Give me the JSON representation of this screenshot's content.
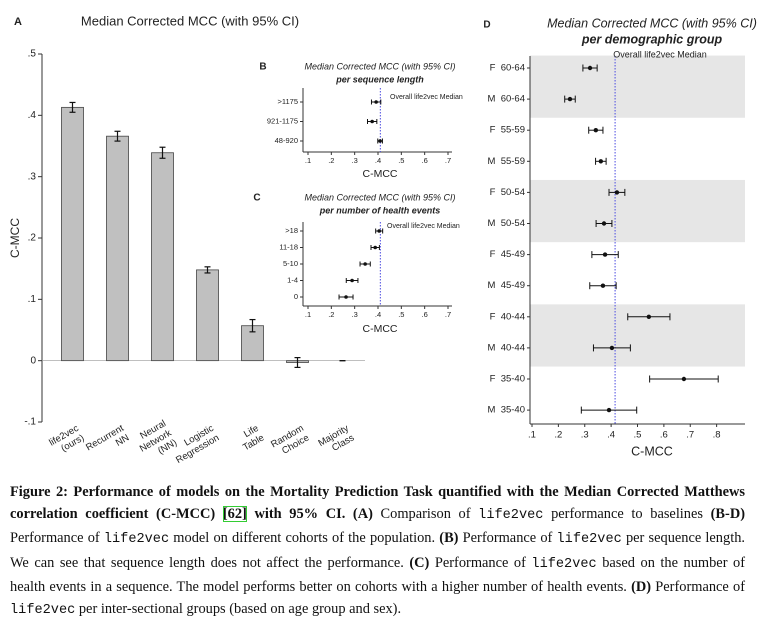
{
  "chart_data": [
    {
      "type": "bar",
      "panel": "A",
      "title": "Median Corrected MCC (with 95% CI)",
      "ylabel": "C-MCC",
      "categories": [
        [
          "life2vec",
          "(ours)"
        ],
        [
          "Recurrent",
          "NN"
        ],
        [
          "Neural",
          "Network",
          "(NN)"
        ],
        [
          "Logistic",
          "Regression"
        ],
        [
          "Life",
          "Table"
        ],
        [
          "Random",
          "Choice"
        ],
        [
          "Majority",
          "Class"
        ]
      ],
      "values": [
        0.413,
        0.366,
        0.339,
        0.148,
        0.057,
        -0.003,
        0
      ],
      "errors": [
        0.008,
        0.008,
        0.009,
        0.005,
        0.01,
        0.008,
        0
      ],
      "color": "#c0c0c0",
      "ylim": [
        -0.1,
        0.5
      ],
      "yticks": [
        {
          "value": -0.1,
          "label": "-.1"
        },
        0,
        {
          "value": 0.1,
          "label": ".1"
        },
        {
          "value": 0.2,
          "label": ".2"
        },
        {
          "value": 0.3,
          "label": ".3"
        },
        {
          "value": 0.4,
          "label": ".4"
        },
        {
          "value": 0.5,
          "label": ".5"
        }
      ]
    },
    {
      "type": "dot",
      "panel": "B",
      "title": "Median Corrected MCC (with 95% CI)",
      "subtitle": "per sequence length",
      "xlabel": "C-MCC",
      "categories": [
        ">1175",
        "921-1175",
        "48-920"
      ],
      "values": [
        0.392,
        0.375,
        0.409
      ],
      "errors": [
        0.02,
        0.02,
        0.01
      ],
      "color": "#111111",
      "ref_color": "#4a4ae0",
      "ref_line": {
        "value": 0.41,
        "label": "Overall life2vec Median"
      },
      "xlim": [
        0.1,
        0.7
      ],
      "xticks": [
        {
          "value": 0.1,
          "label": ".1"
        },
        {
          "value": 0.2,
          "label": ".2"
        },
        {
          "value": 0.3,
          "label": ".3"
        },
        {
          "value": 0.4,
          "label": ".4"
        },
        {
          "value": 0.5,
          "label": ".5"
        },
        {
          "value": 0.6,
          "label": ".6"
        },
        {
          "value": 0.7,
          "label": ".7"
        }
      ]
    },
    {
      "type": "dot",
      "panel": "C",
      "title": "Median Corrected MCC (with 95% CI)",
      "subtitle": "per number of health events",
      "xlabel": "C-MCC",
      "categories": [
        ">18",
        "11-18",
        "5-10",
        "1-4",
        "0"
      ],
      "values": [
        0.405,
        0.388,
        0.345,
        0.289,
        0.263
      ],
      "errors": [
        0.015,
        0.018,
        0.022,
        0.025,
        0.03
      ],
      "color": "#111111",
      "ref_color": "#4a4ae0",
      "ref_line": {
        "value": 0.41,
        "label": "Overall life2vec Median"
      },
      "xlim": [
        0.1,
        0.7
      ],
      "xticks": [
        {
          "value": 0.1,
          "label": ".1"
        },
        {
          "value": 0.2,
          "label": ".2"
        },
        {
          "value": 0.3,
          "label": ".3"
        },
        {
          "value": 0.4,
          "label": ".4"
        },
        {
          "value": 0.5,
          "label": ".5"
        },
        {
          "value": 0.6,
          "label": ".6"
        },
        {
          "value": 0.7,
          "label": ".7"
        }
      ]
    },
    {
      "type": "dot",
      "panel": "D",
      "title": "Median Corrected MCC (with 95% CI)",
      "subtitle": "per demographic group",
      "xlabel": "C-MCC",
      "categories": [
        "F  60-64",
        "M  60-64",
        "F  55-59",
        "M  55-59",
        "F  50-54",
        "M  50-54",
        "F  45-49",
        "M  45-49",
        "F  40-44",
        "M  40-44",
        "F  35-40",
        "M  35-40"
      ],
      "values": [
        0.32,
        0.244,
        0.342,
        0.361,
        0.422,
        0.373,
        0.377,
        0.369,
        0.543,
        0.403,
        0.676,
        0.392
      ],
      "errors": [
        0.027,
        0.02,
        0.027,
        0.02,
        0.03,
        0.03,
        0.05,
        0.05,
        0.08,
        0.07,
        0.13,
        0.105
      ],
      "color": "#111111",
      "ref_color": "#4a4ae0",
      "row_shading": "#e6e6e6",
      "ref_line": {
        "value": 0.415,
        "label": "Overall life2vec Median"
      },
      "xlim": [
        0.1,
        0.9
      ],
      "xticks": [
        {
          "value": 0.1,
          "label": ".1"
        },
        {
          "value": 0.2,
          "label": ".2"
        },
        {
          "value": 0.3,
          "label": ".3"
        },
        {
          "value": 0.4,
          "label": ".4"
        },
        {
          "value": 0.5,
          "label": ".5"
        },
        {
          "value": 0.6,
          "label": ".6"
        },
        {
          "value": 0.7,
          "label": ".7"
        },
        {
          "value": 0.8,
          "label": ".8"
        }
      ]
    }
  ],
  "caption": {
    "runs": [
      {
        "text": "Figure 2: Performance of models on the Mortality Prediction Task quantified with the Median Corrected Matthews correlation coefficient (C-MCC) ",
        "font": "bold"
      },
      {
        "text": "[62]",
        "font": "link"
      },
      {
        "text": " with 95% CI.",
        "font": "bold"
      },
      {
        "text": " (A)",
        "font": "bold"
      },
      {
        "text": " Comparison of ",
        "font": "regular"
      },
      {
        "text": "life2vec",
        "font": "mono"
      },
      {
        "text": " performance to baselines ",
        "font": "regular"
      },
      {
        "text": "(B-D)",
        "font": "bold"
      },
      {
        "text": " Performance of ",
        "font": "regular"
      },
      {
        "text": "life2vec",
        "font": "mono"
      },
      {
        "text": " model on different cohorts of the population. ",
        "font": "regular"
      },
      {
        "text": "(B)",
        "font": "bold"
      },
      {
        "text": " Performance of ",
        "font": "regular"
      },
      {
        "text": "life2vec",
        "font": "mono"
      },
      {
        "text": " per sequence length. We can see that sequence length does not affect the performance. ",
        "font": "regular"
      },
      {
        "text": "(C)",
        "font": "bold"
      },
      {
        "text": " Performance of ",
        "font": "regular"
      },
      {
        "text": "life2vec",
        "font": "mono"
      },
      {
        "text": " based on the number of health events in a sequence. The model performs better on cohorts with a higher number of health events. ",
        "font": "regular"
      },
      {
        "text": "(D)",
        "font": "bold"
      },
      {
        "text": " Performance of ",
        "font": "regular"
      },
      {
        "text": "life2vec",
        "font": "mono"
      },
      {
        "text": " per inter-sectional groups (based on age group and sex).",
        "font": "regular"
      }
    ]
  }
}
